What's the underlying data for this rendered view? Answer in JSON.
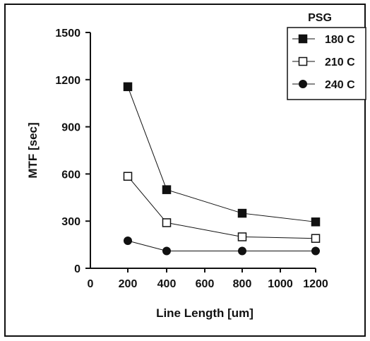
{
  "chart_data": {
    "type": "line",
    "title": "",
    "xlabel": "Line Length [um]",
    "ylabel": "MTF [sec]",
    "xlim": [
      0,
      1200
    ],
    "ylim": [
      0,
      1500
    ],
    "x_ticks": [
      "0",
      "200",
      "400",
      "600",
      "800",
      "1000",
      "1200"
    ],
    "y_ticks": [
      "0",
      "300",
      "600",
      "900",
      "1200",
      "1500"
    ],
    "x_categories": [
      200,
      400,
      800,
      1200
    ],
    "legend_title": "PSG",
    "legend_position": "top-right",
    "grid": false,
    "series": [
      {
        "name": "180 C",
        "marker": "filled-square",
        "color": "#111111",
        "x": [
          200,
          400,
          800,
          1200
        ],
        "y": [
          1155,
          500,
          350,
          295
        ]
      },
      {
        "name": "210 C",
        "marker": "open-square",
        "color": "#111111",
        "x": [
          200,
          400,
          800,
          1200
        ],
        "y": [
          585,
          290,
          200,
          190
        ]
      },
      {
        "name": "240 C",
        "marker": "filled-circle",
        "color": "#111111",
        "x": [
          200,
          400,
          800,
          1200
        ],
        "y": [
          175,
          110,
          110,
          110
        ]
      }
    ]
  }
}
